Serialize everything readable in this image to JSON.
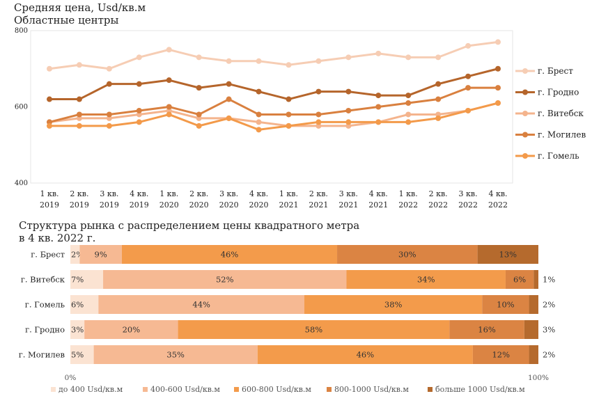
{
  "chart_data": [
    {
      "type": "line",
      "title": "Средняя цена, Usd/кв.м",
      "subtitle": "Областные центры",
      "ylim": [
        400,
        800
      ],
      "yticks": [
        400,
        600,
        800
      ],
      "grid": false,
      "legend_position": "right",
      "categories": [
        [
          "1 кв.",
          "2019"
        ],
        [
          "2 кв.",
          "2019"
        ],
        [
          "3 кв.",
          "2019"
        ],
        [
          "4 кв.",
          "2019"
        ],
        [
          "1 кв.",
          "2020"
        ],
        [
          "2 кв.",
          "2020"
        ],
        [
          "3 кв.",
          "2020"
        ],
        [
          "4 кв.",
          "2020"
        ],
        [
          "1 кв.",
          "2021"
        ],
        [
          "2 кв.",
          "2021"
        ],
        [
          "3 кв.",
          "2021"
        ],
        [
          "4 кв.",
          "2021"
        ],
        [
          "1 кв.",
          "2022"
        ],
        [
          "2 кв.",
          "2022"
        ],
        [
          "3 кв.",
          "2022"
        ],
        [
          "4 кв.",
          "2022"
        ]
      ],
      "series": [
        {
          "name": "г. Брест",
          "color": "#f6cdb4",
          "values": [
            700,
            710,
            700,
            730,
            750,
            730,
            720,
            720,
            710,
            720,
            730,
            740,
            730,
            730,
            760,
            770
          ]
        },
        {
          "name": "г. Гродно",
          "color": "#b5652b",
          "values": [
            620,
            620,
            660,
            660,
            670,
            650,
            660,
            640,
            620,
            640,
            640,
            630,
            630,
            660,
            680,
            700
          ]
        },
        {
          "name": "г. Витебск",
          "color": "#f4b48d",
          "values": [
            560,
            570,
            570,
            580,
            590,
            570,
            570,
            560,
            550,
            550,
            550,
            560,
            580,
            580,
            590,
            610
          ]
        },
        {
          "name": "г. Могилев",
          "color": "#d9803f",
          "values": [
            560,
            580,
            580,
            590,
            600,
            580,
            620,
            580,
            580,
            580,
            590,
            600,
            610,
            620,
            650,
            650
          ]
        },
        {
          "name": "г. Гомель",
          "color": "#f39a4a",
          "values": [
            550,
            550,
            550,
            560,
            580,
            550,
            570,
            540,
            550,
            560,
            560,
            560,
            560,
            570,
            590,
            610
          ]
        }
      ]
    },
    {
      "type": "bar",
      "orientation": "horizontal",
      "stacked": true,
      "title": "Структура рынка с распределением цены квадратного метра",
      "subtitle": "в 4 кв. 2022 г.",
      "xlim": [
        0,
        100
      ],
      "xticks": [
        "0%",
        "100%"
      ],
      "legend_position": "bottom",
      "categories": [
        "г. Брест",
        "г. Витебск",
        "г. Гомель",
        "г. Гродно",
        "г. Могилев"
      ],
      "series": [
        {
          "name": "до 400 Usd/кв.м",
          "color": "#fbe3d2",
          "values": [
            2,
            7,
            6,
            3,
            5
          ],
          "labels": [
            "2%",
            "7%",
            "6%",
            "3%",
            "5%"
          ]
        },
        {
          "name": "400-600 Usd/кв.м",
          "color": "#f6b993",
          "values": [
            9,
            52,
            44,
            20,
            35
          ],
          "labels": [
            "9%",
            "52%",
            "44%",
            "20%",
            "35%"
          ]
        },
        {
          "name": "600-800 Usd/кв.м",
          "color": "#f39b4b",
          "values": [
            46,
            34,
            38,
            58,
            46
          ],
          "labels": [
            "46%",
            "34%",
            "38%",
            "58%",
            "46%"
          ]
        },
        {
          "name": "800-1000 Usd/кв.м",
          "color": "#db8443",
          "values": [
            30,
            6,
            10,
            16,
            12
          ],
          "labels": [
            "30%",
            "6%",
            "10%",
            "16%",
            "12%"
          ]
        },
        {
          "name": "больше 1000 Usd/кв.м",
          "color": "#b56a2d",
          "values": [
            13,
            1,
            2,
            3,
            2
          ],
          "labels": [
            "13%",
            "1%",
            "2%",
            "3%",
            "2%"
          ]
        }
      ]
    }
  ]
}
